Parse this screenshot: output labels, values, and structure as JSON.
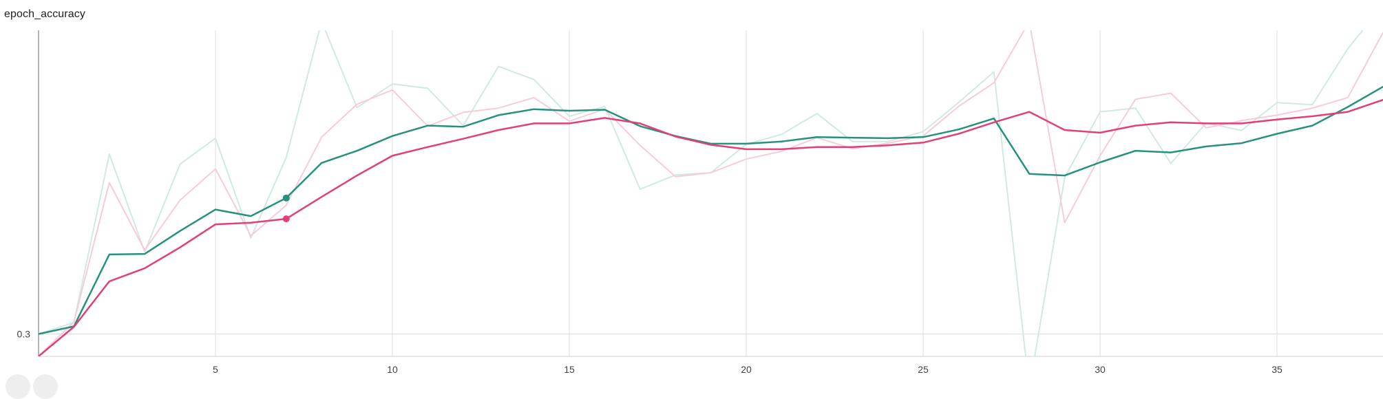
{
  "title": "epoch_accuracy",
  "colors": {
    "teal": "#26917c",
    "teal_raw": "#cfe9e3",
    "pink": "#e23f78",
    "pink_raw": "#f7cbd8",
    "grid": "#dcdcdc",
    "axis": "#9e9e9e"
  },
  "chart_data": {
    "type": "line",
    "title": "epoch_accuracy",
    "xlabel": "",
    "ylabel": "",
    "xlim": [
      0,
      38
    ],
    "ylim": [
      0.2593,
      0.8538
    ],
    "x_ticks": [
      5,
      10,
      15,
      20,
      25,
      30,
      35
    ],
    "y_ticks": [
      0.3
    ],
    "grid": true,
    "series": [
      {
        "color": "teal",
        "style": "smoothed",
        "x": [
          0,
          1,
          2,
          3,
          4,
          5,
          6,
          7,
          8,
          9,
          10,
          11,
          12,
          13,
          14,
          15,
          16,
          17,
          18,
          19,
          20,
          21,
          22,
          23,
          24,
          25,
          26,
          27,
          28,
          29,
          30,
          31,
          32,
          33,
          34,
          35,
          36,
          37,
          38
        ],
        "values": [
          0.3,
          0.314,
          0.445,
          0.446,
          0.488,
          0.527,
          0.515,
          0.548,
          0.612,
          0.634,
          0.661,
          0.68,
          0.678,
          0.699,
          0.71,
          0.707,
          0.709,
          0.679,
          0.661,
          0.647,
          0.647,
          0.651,
          0.659,
          0.658,
          0.657,
          0.659,
          0.673,
          0.693,
          0.592,
          0.589,
          0.613,
          0.634,
          0.631,
          0.642,
          0.648,
          0.665,
          0.68,
          0.714,
          0.751
        ]
      },
      {
        "color": "teal_raw",
        "style": "raw",
        "x": [
          0,
          1,
          2,
          3,
          4,
          5,
          6,
          7,
          8,
          9,
          10,
          11,
          12,
          13,
          14,
          15,
          16,
          17,
          18,
          19,
          20,
          21,
          22,
          23,
          24,
          25,
          26,
          27,
          28,
          29,
          30,
          31,
          32,
          33,
          34,
          35,
          36,
          37,
          38
        ],
        "values": [
          0.3,
          0.321,
          0.628,
          0.45,
          0.61,
          0.657,
          0.475,
          0.622,
          0.87,
          0.713,
          0.756,
          0.748,
          0.68,
          0.788,
          0.764,
          0.697,
          0.715,
          0.564,
          0.59,
          0.594,
          0.646,
          0.664,
          0.702,
          0.651,
          0.651,
          0.669,
          0.722,
          0.778,
          0.2,
          0.585,
          0.705,
          0.712,
          0.611,
          0.685,
          0.671,
          0.722,
          0.718,
          0.82,
          0.9
        ]
      },
      {
        "color": "pink",
        "style": "smoothed",
        "x": [
          0,
          1,
          2,
          3,
          4,
          5,
          6,
          7,
          8,
          9,
          10,
          11,
          12,
          13,
          14,
          15,
          16,
          17,
          18,
          19,
          20,
          21,
          22,
          23,
          24,
          25,
          26,
          27,
          28,
          29,
          30,
          31,
          32,
          33,
          34,
          35,
          36,
          37,
          38
        ],
        "values": [
          0.2593,
          0.3132,
          0.396,
          0.42,
          0.458,
          0.5,
          0.503,
          0.51,
          0.55,
          0.589,
          0.625,
          0.641,
          0.656,
          0.672,
          0.684,
          0.684,
          0.694,
          0.684,
          0.66,
          0.645,
          0.637,
          0.637,
          0.641,
          0.641,
          0.644,
          0.649,
          0.665,
          0.686,
          0.705,
          0.672,
          0.667,
          0.68,
          0.686,
          0.684,
          0.684,
          0.691,
          0.697,
          0.705,
          0.727
        ]
      },
      {
        "color": "pink_raw",
        "style": "raw",
        "x": [
          0,
          1,
          2,
          3,
          4,
          5,
          6,
          7,
          8,
          9,
          10,
          11,
          12,
          13,
          14,
          15,
          16,
          17,
          18,
          19,
          20,
          21,
          22,
          23,
          24,
          25,
          26,
          27,
          28,
          29,
          30,
          31,
          32,
          33,
          34,
          35,
          36,
          37,
          38
        ],
        "values": [
          0.2593,
          0.322,
          0.576,
          0.453,
          0.544,
          0.601,
          0.479,
          0.535,
          0.659,
          0.719,
          0.745,
          0.679,
          0.704,
          0.712,
          0.731,
          0.688,
          0.71,
          0.644,
          0.587,
          0.594,
          0.619,
          0.633,
          0.658,
          0.638,
          0.648,
          0.661,
          0.715,
          0.758,
          0.87,
          0.503,
          0.625,
          0.728,
          0.739,
          0.676,
          0.689,
          0.699,
          0.712,
          0.731,
          0.85
        ]
      }
    ],
    "highlight_points": [
      {
        "series": 0,
        "x": 7
      },
      {
        "series": 2,
        "x": 7
      }
    ]
  }
}
